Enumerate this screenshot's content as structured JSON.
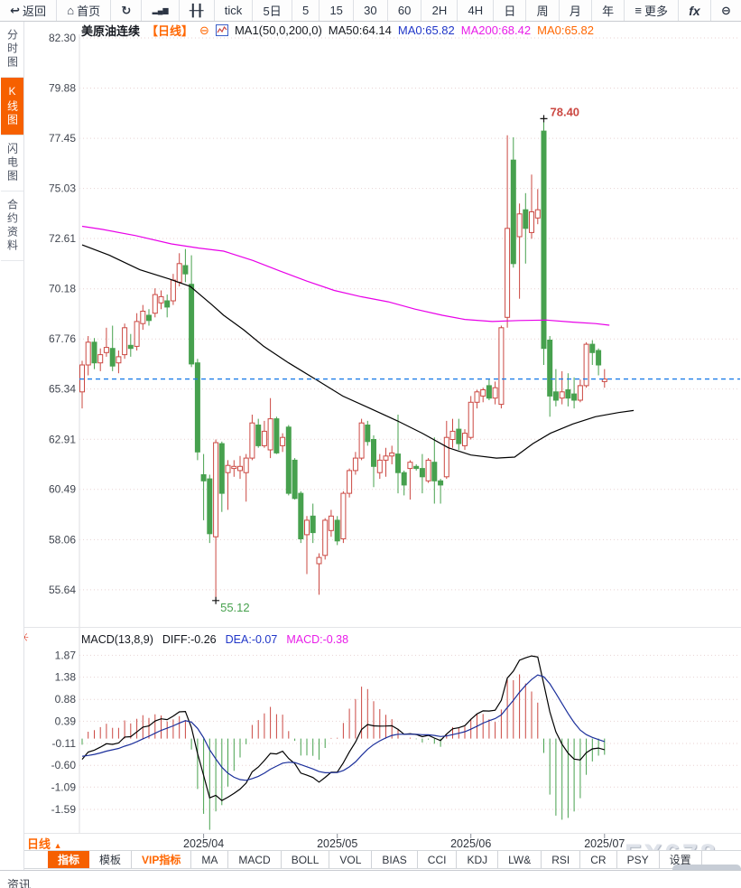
{
  "toolbar": {
    "items": [
      {
        "name": "back",
        "icon": "back-arrow-icon",
        "glyph": "↩",
        "label": "返回"
      },
      {
        "name": "home",
        "icon": "home-icon",
        "glyph": "⌂",
        "label": "首页"
      },
      {
        "name": "refresh",
        "icon": "refresh-icon",
        "glyph": "↻",
        "label": ""
      },
      {
        "name": "bar-chart",
        "icon": "bar-chart-icon",
        "glyph": "▂▄▆",
        "glyph_class": "small",
        "label": ""
      },
      {
        "name": "kline-style",
        "icon": "candlestick-icon",
        "glyph": "╂╂",
        "label": ""
      },
      {
        "name": "tick",
        "label": "tick"
      },
      {
        "name": "period-5d",
        "label": "5日"
      },
      {
        "name": "period-5",
        "label": "5"
      },
      {
        "name": "period-15",
        "label": "15"
      },
      {
        "name": "period-30",
        "label": "30"
      },
      {
        "name": "period-60",
        "label": "60"
      },
      {
        "name": "period-2h",
        "label": "2H"
      },
      {
        "name": "period-4h",
        "label": "4H"
      },
      {
        "name": "period-day",
        "label": "日"
      },
      {
        "name": "period-week",
        "label": "周"
      },
      {
        "name": "period-month",
        "label": "月"
      },
      {
        "name": "period-year",
        "label": "年"
      },
      {
        "name": "more",
        "icon": "menu-icon",
        "glyph": "≡",
        "label": "更多"
      },
      {
        "name": "formula",
        "label": "fx",
        "italic": true
      },
      {
        "name": "zoom-out",
        "icon": "zoom-out-icon",
        "glyph": "⊖",
        "label": ""
      }
    ]
  },
  "sidebar": {
    "items": [
      {
        "label": "分时图",
        "active": false
      },
      {
        "label": "K线图",
        "active": true
      },
      {
        "label": "闪电图",
        "active": false
      },
      {
        "label": "合约资料",
        "active": false
      }
    ]
  },
  "chart_header": {
    "symbol": "美原油连续",
    "period_tag": "【日线】",
    "collapse_glyph": "⊖",
    "ma_settings": "MA1(50,0,200,0)",
    "ma50": "MA50:64.14",
    "ma0_blue": "MA0:65.82",
    "ma200": "MA200:68.42",
    "ma0_orange": "MA0:65.82"
  },
  "macd_header": {
    "settings_glyph": "☀",
    "title": "MACD(13,8,9)",
    "diff": "DIFF:-0.26",
    "dea": "DEA:-0.07",
    "macd": "MACD:-0.38"
  },
  "bottom": {
    "period_button": "日线",
    "period_arrow": "▲",
    "tabs": [
      {
        "label": "指标",
        "active": true
      },
      {
        "label": "模板"
      },
      {
        "label": "VIP指标",
        "vip": true
      },
      {
        "label": "MA"
      },
      {
        "label": "MACD"
      },
      {
        "label": "BOLL"
      },
      {
        "label": "VOL"
      },
      {
        "label": "BIAS"
      },
      {
        "label": "CCI"
      },
      {
        "label": "KDJ"
      },
      {
        "label": "LW&"
      },
      {
        "label": "RSI"
      },
      {
        "label": "CR"
      },
      {
        "label": "PSY"
      },
      {
        "label": "设置"
      }
    ],
    "news_label": "资讯",
    "watermark": "FX678"
  },
  "chart_data": {
    "type": "candlestick+macd",
    "title": "美原油连续 日线 (WTI crude continuous, daily)",
    "legend": [
      "MA50 (black)",
      "MA200 (magenta)",
      "current price dashed line 65.82"
    ],
    "colors": {
      "up": "#cb4842",
      "down": "#47a14e",
      "ma50": "#000000",
      "ma200": "#e800e8",
      "diff_line": "#000000",
      "dea_line": "#1b2f9b",
      "price_line": "#1e7de8",
      "grid": "#e8d2d2",
      "axis_text": "#40454f",
      "accent": "#ff6600"
    },
    "main": {
      "y_tick_labels": [
        "82.30",
        "79.88",
        "77.45",
        "75.03",
        "72.61",
        "70.18",
        "67.76",
        "65.34",
        "62.91",
        "60.49",
        "58.06",
        "55.64"
      ],
      "ylim": [
        54.8,
        82.9
      ],
      "current_price": 65.82,
      "high_marker": {
        "index": 76,
        "price": 78.4,
        "label": "78.40"
      },
      "low_marker": {
        "index": 22,
        "price": 55.12,
        "label": "55.12"
      },
      "candles_ohlc": [
        [
          65.2,
          66.7,
          64.4,
          66.5
        ],
        [
          66.5,
          67.9,
          66.0,
          67.6
        ],
        [
          67.6,
          67.8,
          66.3,
          66.6
        ],
        [
          66.6,
          67.3,
          66.2,
          67.0
        ],
        [
          67.1,
          68.3,
          66.9,
          67.35
        ],
        [
          67.3,
          68.4,
          66.2,
          66.45
        ],
        [
          66.6,
          67.2,
          66.1,
          66.9
        ],
        [
          67.0,
          68.5,
          66.8,
          68.3
        ],
        [
          67.45,
          68.0,
          66.9,
          67.3
        ],
        [
          67.4,
          69.0,
          67.2,
          68.6
        ],
        [
          68.5,
          69.4,
          68.2,
          69.1
        ],
        [
          68.9,
          69.2,
          68.4,
          68.65
        ],
        [
          69.0,
          70.2,
          68.8,
          69.9
        ],
        [
          69.5,
          70.1,
          69.2,
          69.8
        ],
        [
          69.6,
          69.9,
          68.8,
          69.3
        ],
        [
          69.6,
          70.9,
          69.4,
          70.6
        ],
        [
          70.5,
          71.9,
          70.3,
          71.4
        ],
        [
          71.3,
          72.1,
          70.5,
          70.9
        ],
        [
          70.4,
          71.8,
          66.4,
          66.55
        ],
        [
          66.6,
          66.8,
          61.9,
          62.3
        ],
        [
          61.2,
          62.2,
          59.0,
          60.9
        ],
        [
          61.0,
          61.2,
          57.9,
          58.35
        ],
        [
          58.2,
          62.9,
          55.12,
          62.75
        ],
        [
          62.7,
          62.8,
          59.4,
          60.3
        ],
        [
          61.3,
          61.9,
          59.5,
          61.65
        ],
        [
          61.5,
          61.9,
          61.1,
          61.6
        ],
        [
          61.4,
          62.1,
          61.0,
          61.6
        ],
        [
          61.3,
          62.2,
          59.9,
          62.0
        ],
        [
          62.0,
          64.1,
          61.9,
          63.7
        ],
        [
          63.6,
          63.9,
          62.5,
          62.6
        ],
        [
          62.6,
          63.8,
          62.5,
          63.3
        ],
        [
          62.4,
          64.9,
          62.0,
          63.9
        ],
        [
          63.9,
          64.0,
          62.2,
          62.25
        ],
        [
          62.6,
          63.2,
          62.3,
          63.0
        ],
        [
          63.5,
          63.6,
          60.2,
          60.3
        ],
        [
          61.9,
          62.0,
          60.0,
          60.05
        ],
        [
          60.3,
          60.4,
          57.9,
          58.1
        ],
        [
          58.3,
          59.2,
          56.4,
          59.0
        ],
        [
          59.2,
          59.8,
          57.9,
          58.4
        ],
        [
          56.9,
          57.4,
          55.4,
          57.2
        ],
        [
          57.3,
          59.1,
          57.1,
          59.0
        ],
        [
          58.5,
          59.5,
          58.2,
          59.2
        ],
        [
          59.0,
          59.2,
          57.8,
          58.0
        ],
        [
          58.1,
          60.4,
          57.9,
          60.3
        ],
        [
          60.3,
          61.5,
          60.1,
          61.4
        ],
        [
          61.4,
          62.3,
          61.2,
          62.0
        ],
        [
          62.0,
          63.9,
          61.9,
          63.7
        ],
        [
          63.6,
          63.8,
          62.6,
          62.8
        ],
        [
          62.9,
          63.1,
          60.6,
          61.6
        ],
        [
          61.3,
          62.2,
          61.0,
          61.9
        ],
        [
          61.9,
          62.5,
          61.1,
          62.1
        ],
        [
          62.1,
          62.6,
          61.7,
          62.25
        ],
        [
          62.2,
          64.1,
          60.3,
          61.3
        ],
        [
          61.3,
          61.4,
          60.2,
          60.7
        ],
        [
          61.5,
          61.9,
          60.0,
          61.8
        ],
        [
          61.6,
          61.7,
          61.4,
          61.5
        ],
        [
          61.5,
          62.2,
          60.3,
          61.1
        ],
        [
          60.9,
          62.0,
          60.8,
          61.9
        ],
        [
          61.8,
          63.0,
          59.8,
          60.9
        ],
        [
          60.9,
          61.0,
          59.8,
          60.7
        ],
        [
          61.1,
          63.8,
          61.0,
          63.0
        ],
        [
          62.9,
          63.9,
          62.5,
          63.3
        ],
        [
          63.4,
          63.9,
          62.4,
          62.7
        ],
        [
          62.6,
          63.4,
          62.4,
          63.2
        ],
        [
          63.0,
          65.0,
          62.9,
          64.7
        ],
        [
          64.7,
          65.3,
          64.4,
          65.2
        ],
        [
          65.0,
          65.4,
          64.7,
          65.3
        ],
        [
          65.5,
          65.8,
          64.8,
          64.9
        ],
        [
          64.9,
          65.7,
          64.6,
          65.4
        ],
        [
          64.6,
          68.4,
          64.4,
          68.3
        ],
        [
          68.8,
          77.6,
          68.3,
          73.1
        ],
        [
          76.4,
          77.5,
          71.2,
          71.4
        ],
        [
          72.7,
          74.3,
          69.7,
          73.8
        ],
        [
          74.0,
          74.8,
          71.4,
          73.1
        ],
        [
          72.9,
          75.7,
          72.6,
          73.9
        ],
        [
          73.6,
          75.0,
          73.3,
          74.0
        ],
        [
          77.8,
          78.4,
          66.5,
          67.3
        ],
        [
          67.7,
          67.9,
          64.0,
          65.0
        ],
        [
          65.2,
          66.3,
          64.5,
          64.8
        ],
        [
          64.9,
          66.2,
          64.6,
          65.2
        ],
        [
          65.3,
          66.1,
          64.5,
          64.9
        ],
        [
          65.1,
          65.9,
          64.4,
          64.8
        ],
        [
          64.8,
          65.8,
          64.7,
          65.5
        ],
        [
          65.5,
          67.6,
          65.4,
          67.5
        ],
        [
          67.5,
          67.7,
          66.5,
          67.1
        ],
        [
          67.2,
          67.3,
          66.0,
          66.5
        ],
        [
          65.7,
          66.3,
          65.4,
          65.82
        ]
      ],
      "ma50_points": [
        [
          0,
          72.3
        ],
        [
          4.5,
          71.8
        ],
        [
          9.5,
          71.1
        ],
        [
          14.4,
          70.65
        ],
        [
          17.8,
          70.3
        ],
        [
          21.4,
          69.4
        ],
        [
          23.3,
          68.9
        ],
        [
          26.6,
          68.2
        ],
        [
          29.9,
          67.4
        ],
        [
          34,
          66.6
        ],
        [
          38.5,
          65.8
        ],
        [
          42.9,
          65.0
        ],
        [
          47.4,
          64.4
        ],
        [
          51.9,
          63.8
        ],
        [
          56,
          63.2
        ],
        [
          60.3,
          62.5
        ],
        [
          64,
          62.15
        ],
        [
          68.2,
          62.0
        ],
        [
          71.2,
          62.05
        ],
        [
          74.2,
          62.7
        ],
        [
          77.1,
          63.2
        ],
        [
          80.8,
          63.65
        ],
        [
          84.5,
          64.0
        ],
        [
          88.3,
          64.2
        ],
        [
          90.8,
          64.3
        ]
      ],
      "ma200_points": [
        [
          0,
          73.2
        ],
        [
          3.3,
          73.05
        ],
        [
          8.8,
          72.75
        ],
        [
          14.7,
          72.35
        ],
        [
          19.2,
          72.15
        ],
        [
          23.3,
          72.0
        ],
        [
          28.1,
          71.55
        ],
        [
          32.5,
          71.05
        ],
        [
          37,
          70.55
        ],
        [
          41.5,
          70.1
        ],
        [
          45.9,
          69.8
        ],
        [
          50.4,
          69.55
        ],
        [
          54.8,
          69.2
        ],
        [
          59.3,
          68.9
        ],
        [
          63,
          68.7
        ],
        [
          67.5,
          68.6
        ],
        [
          71.9,
          68.65
        ],
        [
          76.4,
          68.67
        ],
        [
          80.8,
          68.57
        ],
        [
          84.5,
          68.5
        ],
        [
          86.8,
          68.42
        ]
      ]
    },
    "macd": {
      "params": [
        13,
        8,
        9
      ],
      "displayed": {
        "diff": -0.26,
        "dea": -0.07,
        "macd": -0.38
      },
      "y_tick_labels": [
        "1.87",
        "1.38",
        "0.88",
        "0.39",
        "-0.11",
        "-0.60",
        "-1.09",
        "-1.59"
      ],
      "ylim": [
        -2.05,
        2.05
      ],
      "seed_closes": [
        69.0,
        68.65,
        68.3,
        67.95,
        67.6,
        67.25,
        66.9,
        66.55,
        66.2,
        65.85,
        65.5,
        65.2
      ]
    },
    "x_ticks": [
      {
        "index": 20,
        "label": "2025/04"
      },
      {
        "index": 42,
        "label": "2025/05"
      },
      {
        "index": 64,
        "label": "2025/06"
      },
      {
        "index": 86,
        "label": "2025/07"
      }
    ]
  }
}
